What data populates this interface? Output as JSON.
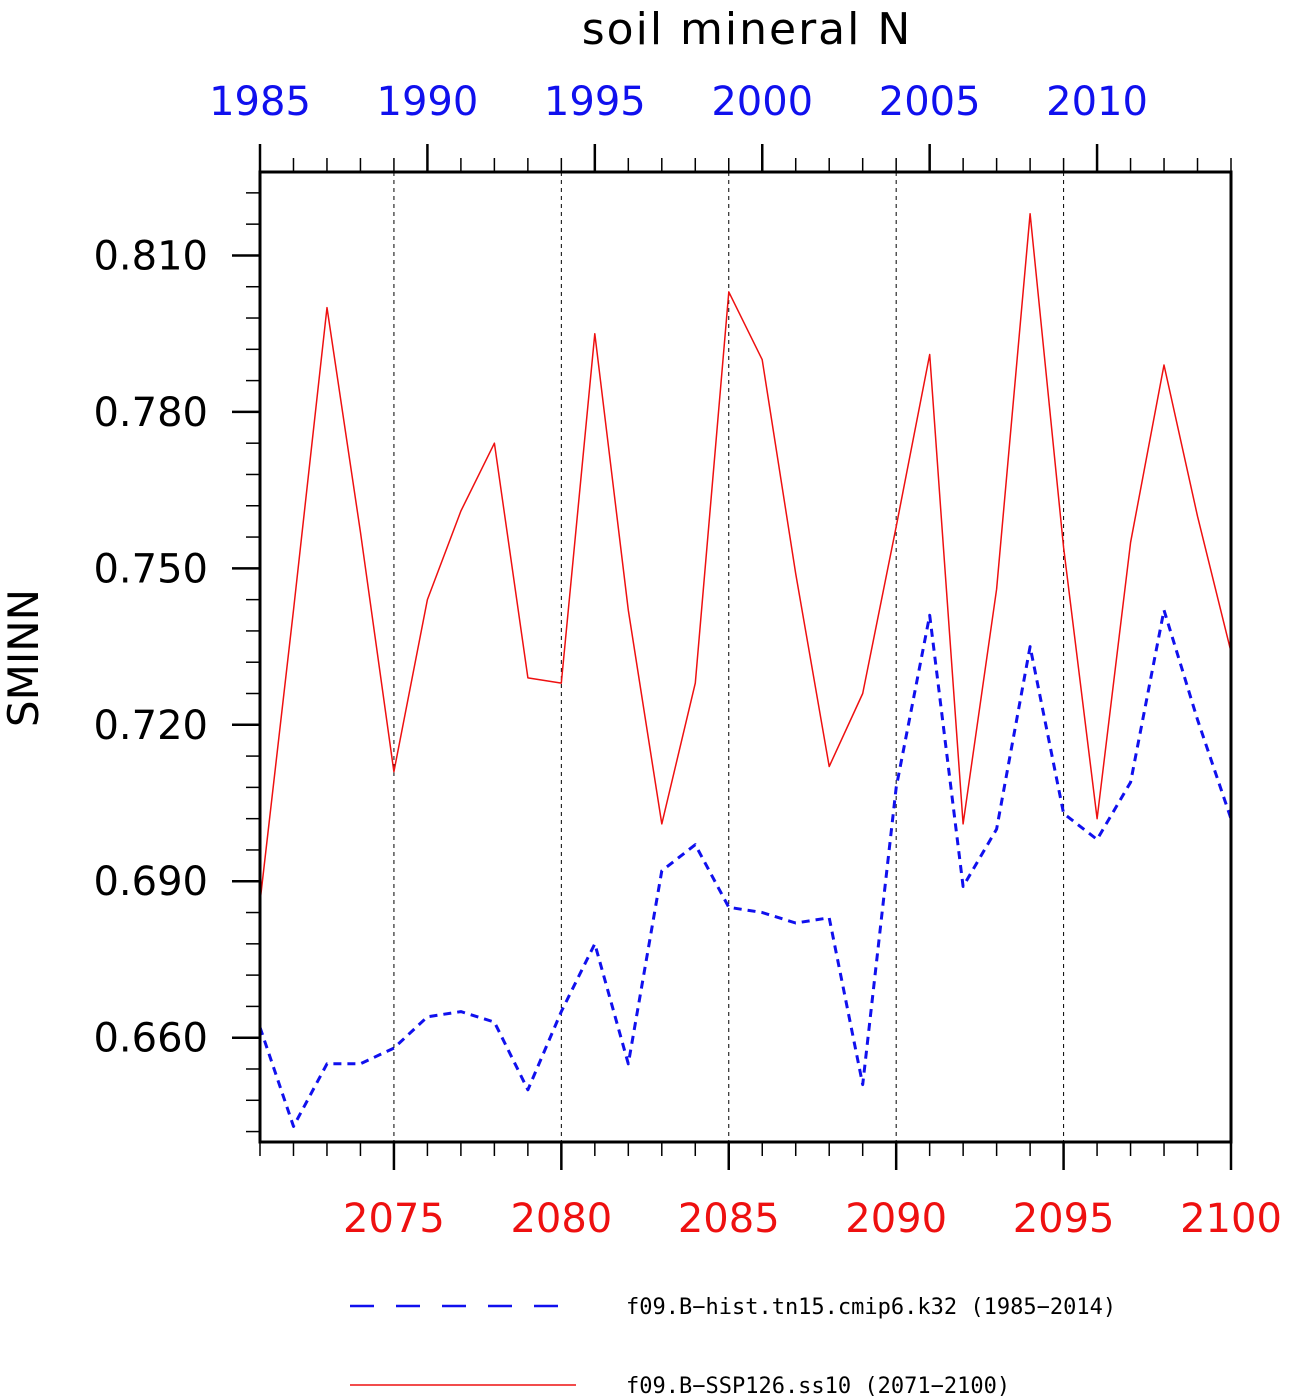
{
  "chart_data": {
    "type": "line",
    "title": "soil mineral N",
    "ylabel": "SMINN",
    "xlabel": "",
    "ylim": [
      0.64,
      0.826
    ],
    "yticks": [
      0.66,
      0.69,
      0.72,
      0.75,
      0.78,
      0.81
    ],
    "ytick_labels": [
      "0.660",
      "0.690",
      "0.720",
      "0.750",
      "0.780",
      "0.810"
    ],
    "top_axis": {
      "color": "#1010ee",
      "range": [
        1985,
        2014
      ],
      "ticks": [
        1985,
        1990,
        1995,
        2000,
        2005,
        2010
      ],
      "tick_labels": [
        "1985",
        "1990",
        "1995",
        "2000",
        "2005",
        "2010"
      ]
    },
    "bottom_axis": {
      "color": "#ee1010",
      "range": [
        2071,
        2100
      ],
      "ticks": [
        2075,
        2080,
        2085,
        2090,
        2095,
        2100
      ],
      "tick_labels": [
        "2075",
        "2080",
        "2085",
        "2090",
        "2095",
        "2100"
      ]
    },
    "grid": "vertical dashed at major ticks",
    "series": [
      {
        "name": "f09.B-hist.tn15.cmip6.k32 (1985-2014)",
        "axis": "top",
        "color": "#1010ee",
        "style": "dashed",
        "x": [
          1985,
          1986,
          1987,
          1988,
          1989,
          1990,
          1991,
          1992,
          1993,
          1994,
          1995,
          1996,
          1997,
          1998,
          1999,
          2000,
          2001,
          2002,
          2003,
          2004,
          2005,
          2006,
          2007,
          2008,
          2009,
          2010,
          2011,
          2012,
          2013,
          2014
        ],
        "values": [
          0.662,
          0.643,
          0.655,
          0.655,
          0.658,
          0.664,
          0.665,
          0.663,
          0.65,
          0.665,
          0.678,
          0.655,
          0.692,
          0.697,
          0.685,
          0.684,
          0.682,
          0.683,
          0.651,
          0.708,
          0.741,
          0.689,
          0.7,
          0.735,
          0.703,
          0.698,
          0.709,
          0.742,
          0.721,
          0.702
        ]
      },
      {
        "name": "f09.B-SSP126.ss10 (2071-2100)",
        "axis": "bottom",
        "color": "#ee1010",
        "style": "solid",
        "x": [
          2071,
          2072,
          2073,
          2074,
          2075,
          2076,
          2077,
          2078,
          2079,
          2080,
          2081,
          2082,
          2083,
          2084,
          2085,
          2086,
          2087,
          2088,
          2089,
          2090,
          2091,
          2092,
          2093,
          2094,
          2095,
          2096,
          2097,
          2098,
          2099,
          2100
        ],
        "values": [
          0.686,
          0.742,
          0.8,
          0.757,
          0.711,
          0.744,
          0.761,
          0.774,
          0.729,
          0.728,
          0.795,
          0.742,
          0.701,
          0.728,
          0.803,
          0.79,
          0.749,
          0.712,
          0.726,
          0.758,
          0.791,
          0.701,
          0.746,
          0.818,
          0.754,
          0.702,
          0.755,
          0.789,
          0.76,
          0.734
        ]
      }
    ],
    "legend": {
      "placement": "bottom",
      "entries": [
        "f09.B−hist.tn15.cmip6.k32 (1985−2014)",
        "f09.B−SSP126.ss10 (2071−2100)"
      ]
    }
  }
}
